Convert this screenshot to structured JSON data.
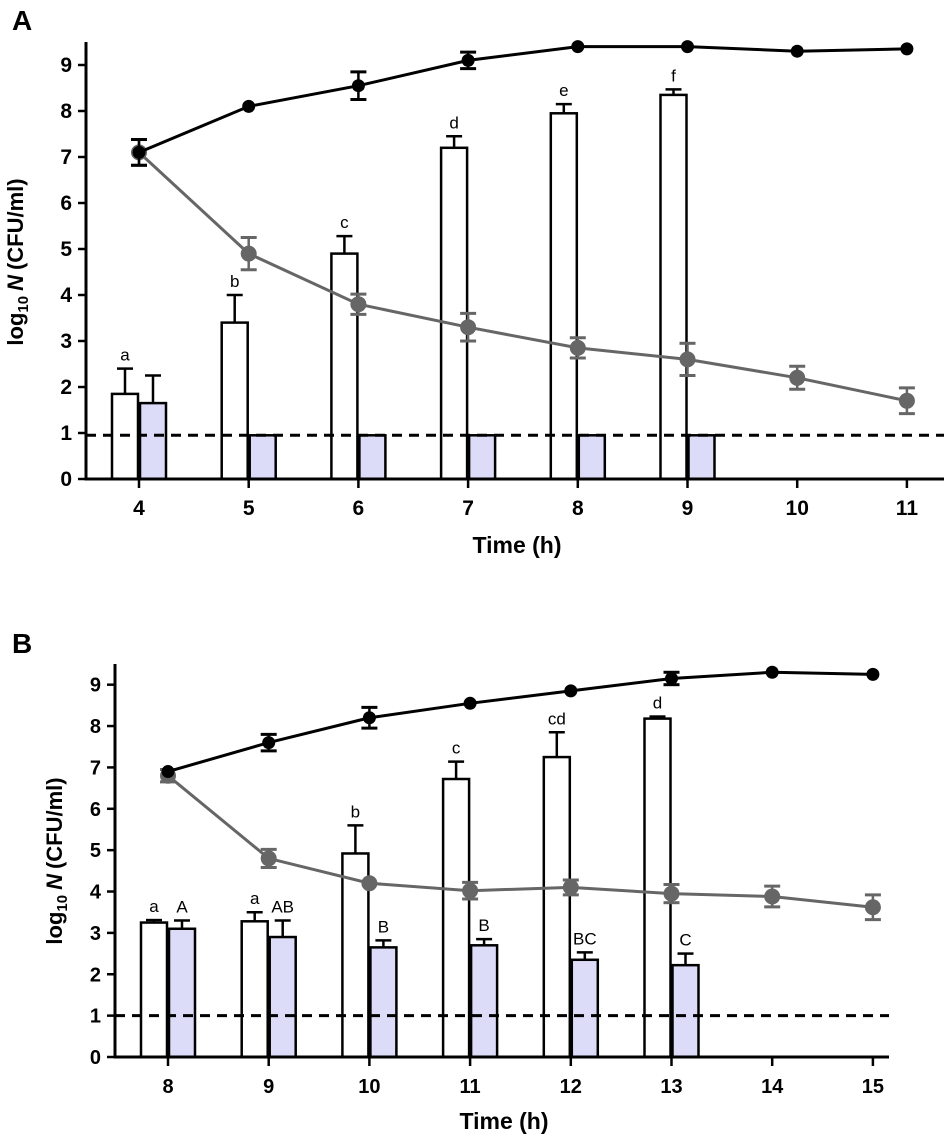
{
  "figure": {
    "panel_a_label": "A",
    "panel_b_label": "B"
  },
  "chart_data": [
    {
      "panel": "A",
      "type": "bar+line",
      "title": "",
      "xlabel": "Time (h)",
      "ylabel_prefix": "log",
      "ylabel_sub": "10",
      "ylabel_var": "N",
      "ylabel_unit": "(CFU/ml)",
      "ylim": [
        0,
        9.5
      ],
      "yticks": [
        0,
        1,
        2,
        3,
        4,
        5,
        6,
        7,
        8,
        9
      ],
      "xcategories": [
        "4",
        "5",
        "6",
        "7",
        "8",
        "9",
        "10",
        "11"
      ],
      "detection_limit": 0.95,
      "bar_series": [
        {
          "name": "white bars",
          "color": "#ffffff",
          "values": [
            1.85,
            3.4,
            4.9,
            7.2,
            7.95,
            8.35,
            null,
            null
          ],
          "errors": [
            0.55,
            0.6,
            0.38,
            0.25,
            0.2,
            0.12,
            null,
            null
          ],
          "labels": [
            "a",
            "b",
            "c",
            "d",
            "e",
            "f",
            "",
            ""
          ]
        },
        {
          "name": "blue bars",
          "color": "#dcdcf8",
          "values": [
            1.65,
            0.95,
            0.95,
            0.95,
            0.95,
            0.95,
            null,
            null
          ],
          "errors": [
            0.6,
            0,
            0,
            0,
            0,
            0,
            null,
            null
          ],
          "labels": [
            "",
            "",
            "",
            "",
            "",
            "",
            "",
            ""
          ]
        }
      ],
      "line_series": [
        {
          "name": "black line",
          "color": "#000000",
          "values": [
            7.1,
            8.1,
            8.55,
            9.1,
            9.4,
            9.4,
            9.3,
            9.35
          ],
          "errors": [
            0.28,
            0.05,
            0.3,
            0.18,
            0.05,
            0.05,
            0.05,
            0.05
          ]
        },
        {
          "name": "grey line",
          "color": "#666666",
          "values": [
            7.1,
            4.9,
            3.8,
            3.3,
            2.85,
            2.6,
            2.2,
            1.7
          ],
          "errors": [
            0.28,
            0.35,
            0.22,
            0.3,
            0.22,
            0.35,
            0.25,
            0.28
          ]
        }
      ]
    },
    {
      "panel": "B",
      "type": "bar+line",
      "title": "",
      "xlabel": "Time (h)",
      "ylabel_prefix": "log",
      "ylabel_sub": "10",
      "ylabel_var": "N",
      "ylabel_unit": "(CFU/ml)",
      "ylim": [
        0,
        9.5
      ],
      "yticks": [
        0,
        1,
        2,
        3,
        4,
        5,
        6,
        7,
        8,
        9
      ],
      "xcategories": [
        "8",
        "9",
        "10",
        "11",
        "12",
        "13",
        "14",
        "15"
      ],
      "detection_limit": 1.0,
      "bar_series": [
        {
          "name": "white bars",
          "color": "#ffffff",
          "values": [
            3.25,
            3.28,
            4.92,
            6.72,
            7.25,
            8.18,
            null,
            null
          ],
          "errors": [
            0.06,
            0.22,
            0.68,
            0.42,
            0.6,
            0.05,
            null,
            null
          ],
          "labels": [
            "a",
            "a",
            "b",
            "c",
            "cd",
            "d",
            "",
            ""
          ]
        },
        {
          "name": "blue bars",
          "color": "#dcdcf8",
          "values": [
            3.1,
            2.9,
            2.65,
            2.7,
            2.35,
            2.22,
            null,
            null
          ],
          "errors": [
            0.2,
            0.4,
            0.17,
            0.15,
            0.18,
            0.28,
            null,
            null
          ],
          "labels": [
            "A",
            "AB",
            "B",
            "B",
            "BC",
            "C",
            "",
            ""
          ]
        }
      ],
      "line_series": [
        {
          "name": "black line",
          "color": "#000000",
          "values": [
            6.9,
            7.6,
            8.2,
            8.55,
            8.85,
            9.15,
            9.3,
            9.25
          ],
          "errors": [
            0.05,
            0.2,
            0.25,
            0.05,
            0.05,
            0.15,
            0.05,
            0.05
          ]
        },
        {
          "name": "grey line",
          "color": "#666666",
          "values": [
            6.8,
            4.8,
            4.2,
            4.02,
            4.1,
            3.95,
            3.88,
            3.62
          ],
          "errors": [
            0.15,
            0.22,
            0.05,
            0.2,
            0.18,
            0.22,
            0.25,
            0.3
          ]
        }
      ]
    }
  ]
}
